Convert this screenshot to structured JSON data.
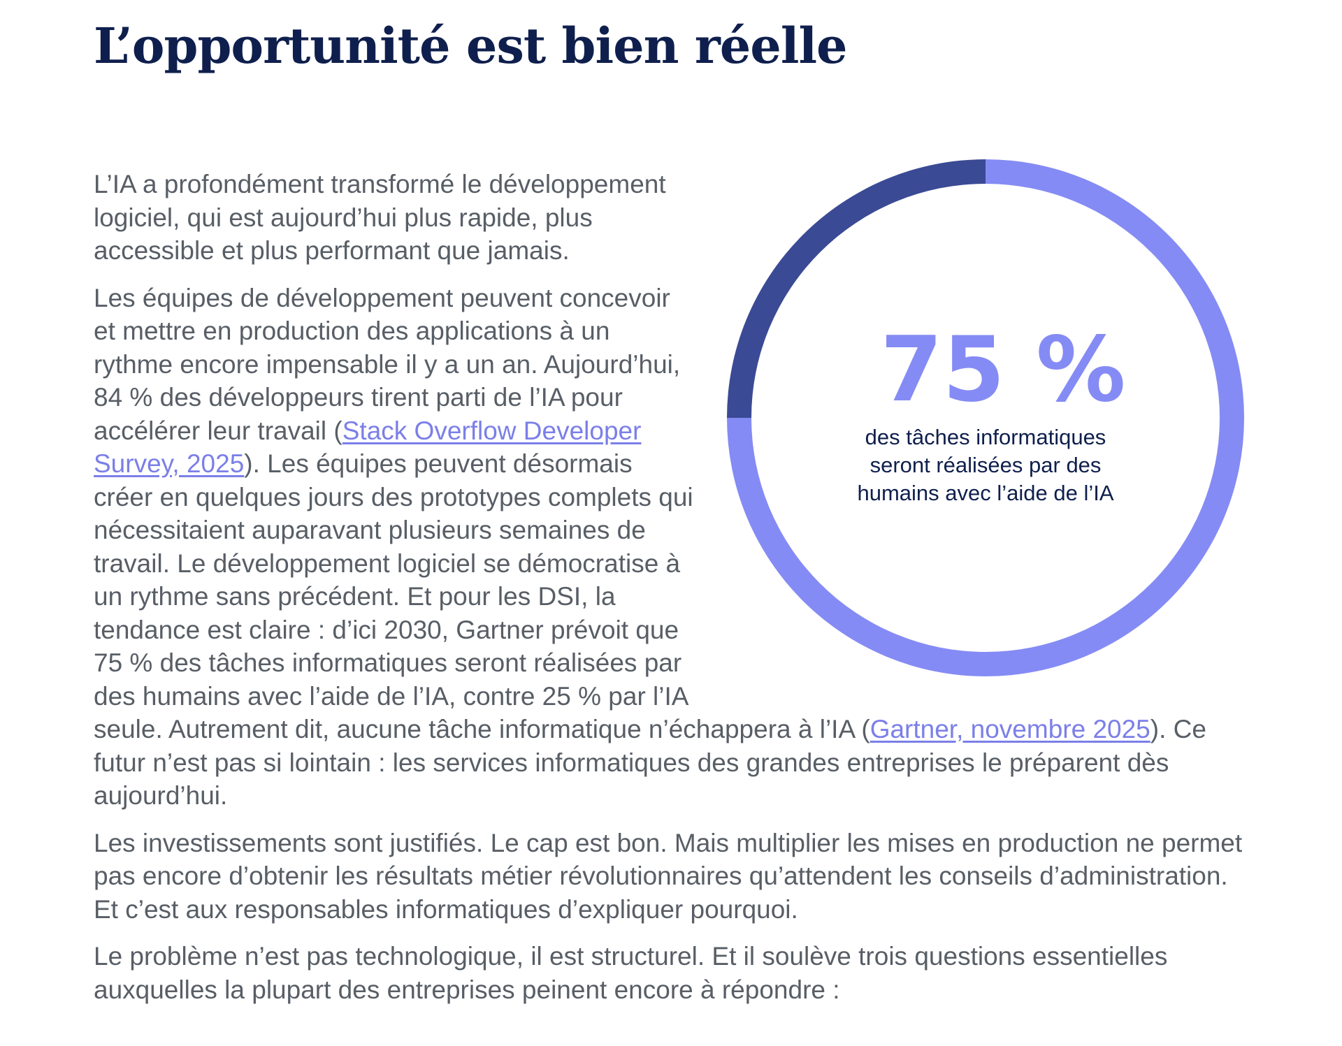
{
  "title": "L’opportunité est bien réelle",
  "paragraphs": {
    "p1": "L’IA a profondément transformé le développement logiciel, qui est aujourd’hui plus rapide, plus accessible et plus performant que jamais.",
    "p2_before_link": "Les équipes de développement peuvent concevoir et mettre en production des applications à un rythme encore impensable il y a un an. Aujourd’hui, 84 % des développeurs tirent parti de l’IA pour accélérer leur travail (",
    "p2_link": "Stack Overflow Developer Survey, 2025",
    "p2_middle": "). Les équipes peuvent désormais créer en quelques jours des prototypes complets qui nécessitaient auparavant plusieurs semaines de travail. Le développement logiciel se démocratise à un rythme sans précédent. Et pour les DSI, la tendance est claire : d’ici 2030, Gartner prévoit que 75 % des tâches informatiques seront réalisées par des humains avec l’aide de l’IA, contre 25 % par l’IA seule. Autrement dit, aucune tâche informatique  n’échappera à l’IA (",
    "p2_link2": "Gartner, novembre 2025",
    "p2_after_link2": "). Ce futur n’est pas si lointain : les services informatiques des grandes entreprises le préparent dès aujourd’hui.",
    "p3": "Les investissements sont justifiés. Le cap est bon. Mais multiplier les mises en production ne permet pas encore d’obtenir les résultats métier révolutionnaires qu’attendent les conseils d’administration. Et c’est aux responsables informatiques d’expliquer pourquoi.",
    "p4": "Le problème n’est pas technologique, il est structurel. Et il soulève trois questions essentielles auxquelles la plupart des entreprises peinent encore à répondre :"
  },
  "stat": {
    "value": "75 %",
    "caption": "des tâches informatiques seront réalisées par des humains avec l’aide de l’IA"
  },
  "chart_data": {
    "type": "pie",
    "variant": "donut",
    "slices": [
      {
        "value": 75,
        "color": "#858bf4"
      },
      {
        "value": 25,
        "color": "#3b4a94"
      }
    ]
  }
}
